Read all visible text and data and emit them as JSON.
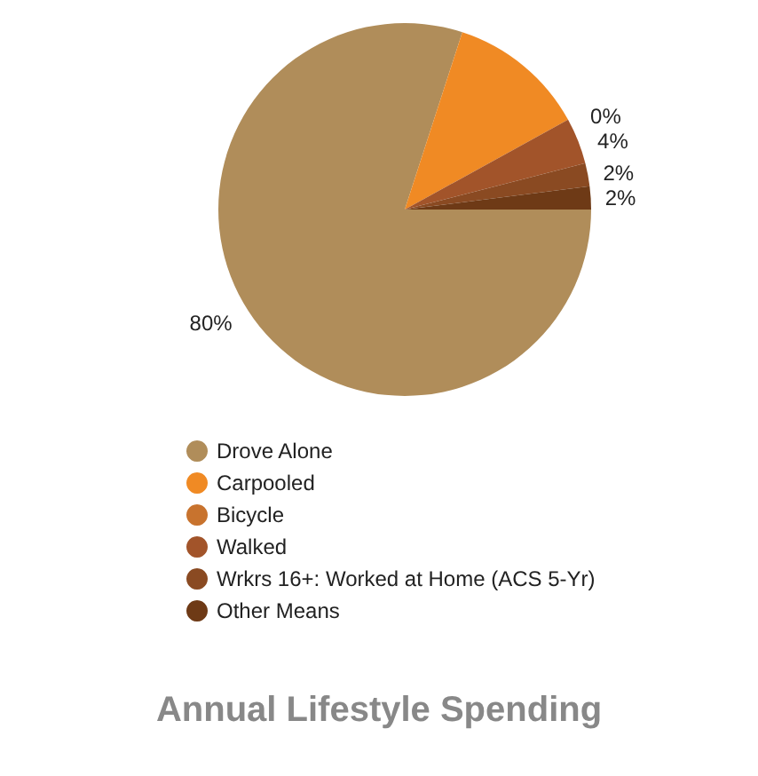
{
  "chart_data": {
    "type": "pie",
    "title": "Annual Lifestyle Spending",
    "categories": [
      "Drove Alone",
      "Carpooled",
      "Bicycle",
      "Walked",
      "Wrkrs 16+: Worked at Home (ACS 5-Yr)",
      "Other Means"
    ],
    "values": [
      80,
      12,
      0,
      4,
      2,
      2
    ],
    "value_labels": [
      "80%",
      null,
      "0%",
      "4%",
      "2%",
      "2%"
    ],
    "colors": [
      "#b08d5a",
      "#f08a24",
      "#c8732e",
      "#a2542a",
      "#8a4a22",
      "#6e3a16"
    ],
    "legend": "bottom"
  }
}
